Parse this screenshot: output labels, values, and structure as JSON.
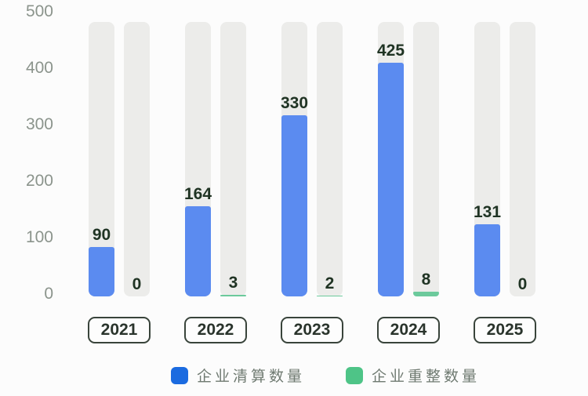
{
  "chart_data": {
    "type": "bar",
    "categories": [
      "2021",
      "2022",
      "2023",
      "2024",
      "2025"
    ],
    "series": [
      {
        "name": "企业清算数量",
        "color": "#5b8bf0",
        "legend_color": "#1b6be0",
        "values": [
          90,
          164,
          330,
          425,
          131
        ]
      },
      {
        "name": "企业重整数量",
        "color": "#6cca9c",
        "legend_color": "#4ec487",
        "values": [
          0,
          3,
          2,
          8,
          0
        ]
      }
    ],
    "title": "",
    "xlabel": "",
    "ylabel": "",
    "ylim": [
      0,
      500
    ],
    "yticks": [
      0,
      100,
      200,
      300,
      400,
      500
    ],
    "grid": false,
    "legend_position": "bottom",
    "track_color": "#ececea",
    "background_color": "#fcfcfc",
    "value_label_color": "#1f3323",
    "tick_label_color": "#8b948c"
  }
}
